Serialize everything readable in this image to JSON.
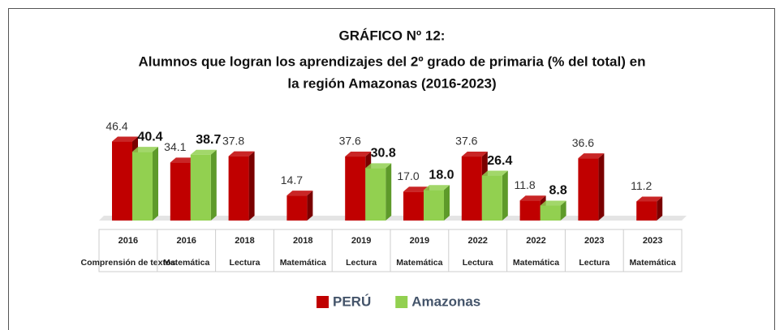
{
  "chart_data": {
    "type": "bar",
    "title": [
      "GRÁFICO Nº 12:",
      "Alumnos que logran los aprendizajes del 2º grado de primaria (% del total) en",
      "la región Amazonas (2016-2023)"
    ],
    "categories": [
      [
        "2016",
        "Comprensión de textos"
      ],
      [
        "2016",
        "Matemática"
      ],
      [
        "2018",
        "Lectura"
      ],
      [
        "2018",
        "Matemática"
      ],
      [
        "2019",
        "Lectura"
      ],
      [
        "2019",
        "Matemática"
      ],
      [
        "2022",
        "Lectura"
      ],
      [
        "2022",
        "Matemática"
      ],
      [
        "2023",
        "Lectura"
      ],
      [
        "2023",
        "Matemática"
      ]
    ],
    "series": [
      {
        "name": "PERÚ",
        "color": "#c00000",
        "side": "#7a0000",
        "values": [
          46.4,
          34.1,
          37.8,
          14.7,
          37.6,
          17.0,
          37.6,
          11.8,
          36.6,
          11.2
        ],
        "value_labels": [
          "46.4",
          "34.1",
          "37.8",
          "14.7",
          "37.6",
          "17.0",
          "37.6",
          "11.8",
          "36.6",
          "11.2"
        ]
      },
      {
        "name": "Amazonas",
        "color": "#92d050",
        "side": "#5e9a2a",
        "values": [
          40.4,
          38.7,
          null,
          null,
          30.8,
          18.0,
          26.4,
          8.8,
          null,
          null
        ],
        "value_labels": [
          "40.4",
          "38.7",
          null,
          null,
          "30.8",
          "18.0",
          "26.4",
          "8.8",
          null,
          null
        ]
      }
    ],
    "legend": "bottom"
  }
}
